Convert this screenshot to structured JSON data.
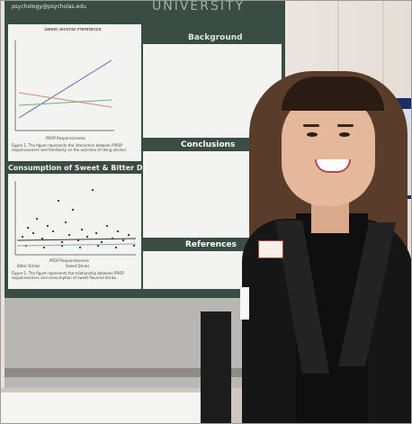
{
  "poster": {
    "header_text": "UNIVERSITY",
    "sections": {
      "background": "Background",
      "conclusions": "Conclusions",
      "references": "References"
    },
    "chart_titles": {
      "top_left": "Sweet Alcohol Preference",
      "bottom_left": "Consumption of Sweet & Bitter Drinks by PROP"
    },
    "chart_axis_labels": {
      "top_left_x": "PROP Responsiveness",
      "bottom_left_x": "PROP Responsiveness"
    },
    "chart_captions": {
      "top_left": "Figure 1. The figure represents the interaction between PROP responsiveness and familiarity on the outcome of liking alcohol.",
      "bottom_left": "Figure 2. The figure represents the relationship between PROP responsiveness and consumption of sweet flavored drinks."
    },
    "legend_labels": {
      "bottom_left_a": "Bitter Drinks",
      "bottom_left_b": "Sweet Drinks"
    },
    "url_text": "psychology@psycholas.edu"
  }
}
